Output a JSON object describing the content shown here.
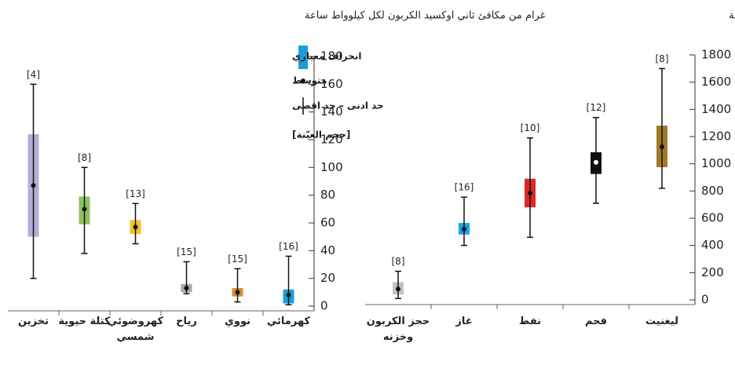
{
  "chart_data": [
    {
      "type": "box",
      "title": "غرام من مكافئ ثاني اوكسيد الكربون لكل كيلوواط ساعة",
      "categories": [
        "تخزين",
        "كتلة حيوية",
        "كهروضوئي شمسي",
        "رياح",
        "نووي",
        "كهرمائي"
      ],
      "mean": [
        87,
        70,
        57,
        13,
        10,
        8
      ],
      "box_high": [
        124,
        79,
        62,
        16,
        13,
        12
      ],
      "box_low": [
        50,
        59,
        52,
        10,
        7,
        2
      ],
      "max": [
        160,
        100,
        74,
        32,
        27,
        36
      ],
      "min": [
        20,
        38,
        45,
        9,
        3,
        1
      ],
      "n": [
        4,
        8,
        13,
        15,
        15,
        16
      ],
      "n_labels": [
        "[4]",
        "[8]",
        "[13]",
        "[15]",
        "[15]",
        "[16]"
      ],
      "colors": [
        "#b3aed6",
        "#8dc060",
        "#f3c22c",
        "#a8a8a8",
        "#d98b2a",
        "#1aa0d8"
      ],
      "marker_colors": [
        "#111",
        "#111",
        "#111",
        "#111",
        "#111",
        "#111"
      ],
      "ylim": [
        0,
        180
      ],
      "yticks": [
        0,
        20,
        40,
        60,
        80,
        100,
        120,
        140,
        160,
        180
      ],
      "legend": {
        "sd": "انحراف معياري",
        "mean": "متوسط",
        "range": "حد ادنى – حد اقصى",
        "n": "[حجم العيّنة]",
        "sd_color": "#1aa0d8"
      }
    },
    {
      "type": "box",
      "title": "غرام من مكافئ ثاني اوكسيد الكربون لكل كيلوواط ساعة",
      "categories": [
        "حجز الكربون وخزنه",
        "غاز",
        "نفط",
        "فحم",
        "ليغنيت"
      ],
      "mean": [
        80,
        520,
        785,
        1010,
        1125
      ],
      "box_high": [
        130,
        565,
        890,
        1085,
        1280
      ],
      "box_low": [
        40,
        480,
        680,
        925,
        975
      ],
      "max": [
        210,
        755,
        1190,
        1340,
        1700
      ],
      "min": [
        10,
        400,
        460,
        710,
        820
      ],
      "n": [
        8,
        16,
        10,
        12,
        8
      ],
      "n_labels": [
        "[8]",
        "[16]",
        "[10]",
        "[12]",
        "[8]"
      ],
      "colors": [
        "#c0c0c8",
        "#1aa6e0",
        "#e02626",
        "#111111",
        "#a0792a"
      ],
      "marker_colors": [
        "#111",
        "#111",
        "#111",
        "#fff",
        "#111"
      ],
      "ylim": [
        0,
        1800
      ],
      "yticks": [
        0,
        200,
        400,
        600,
        800,
        1000,
        1200,
        1400,
        1600,
        1800
      ]
    }
  ]
}
